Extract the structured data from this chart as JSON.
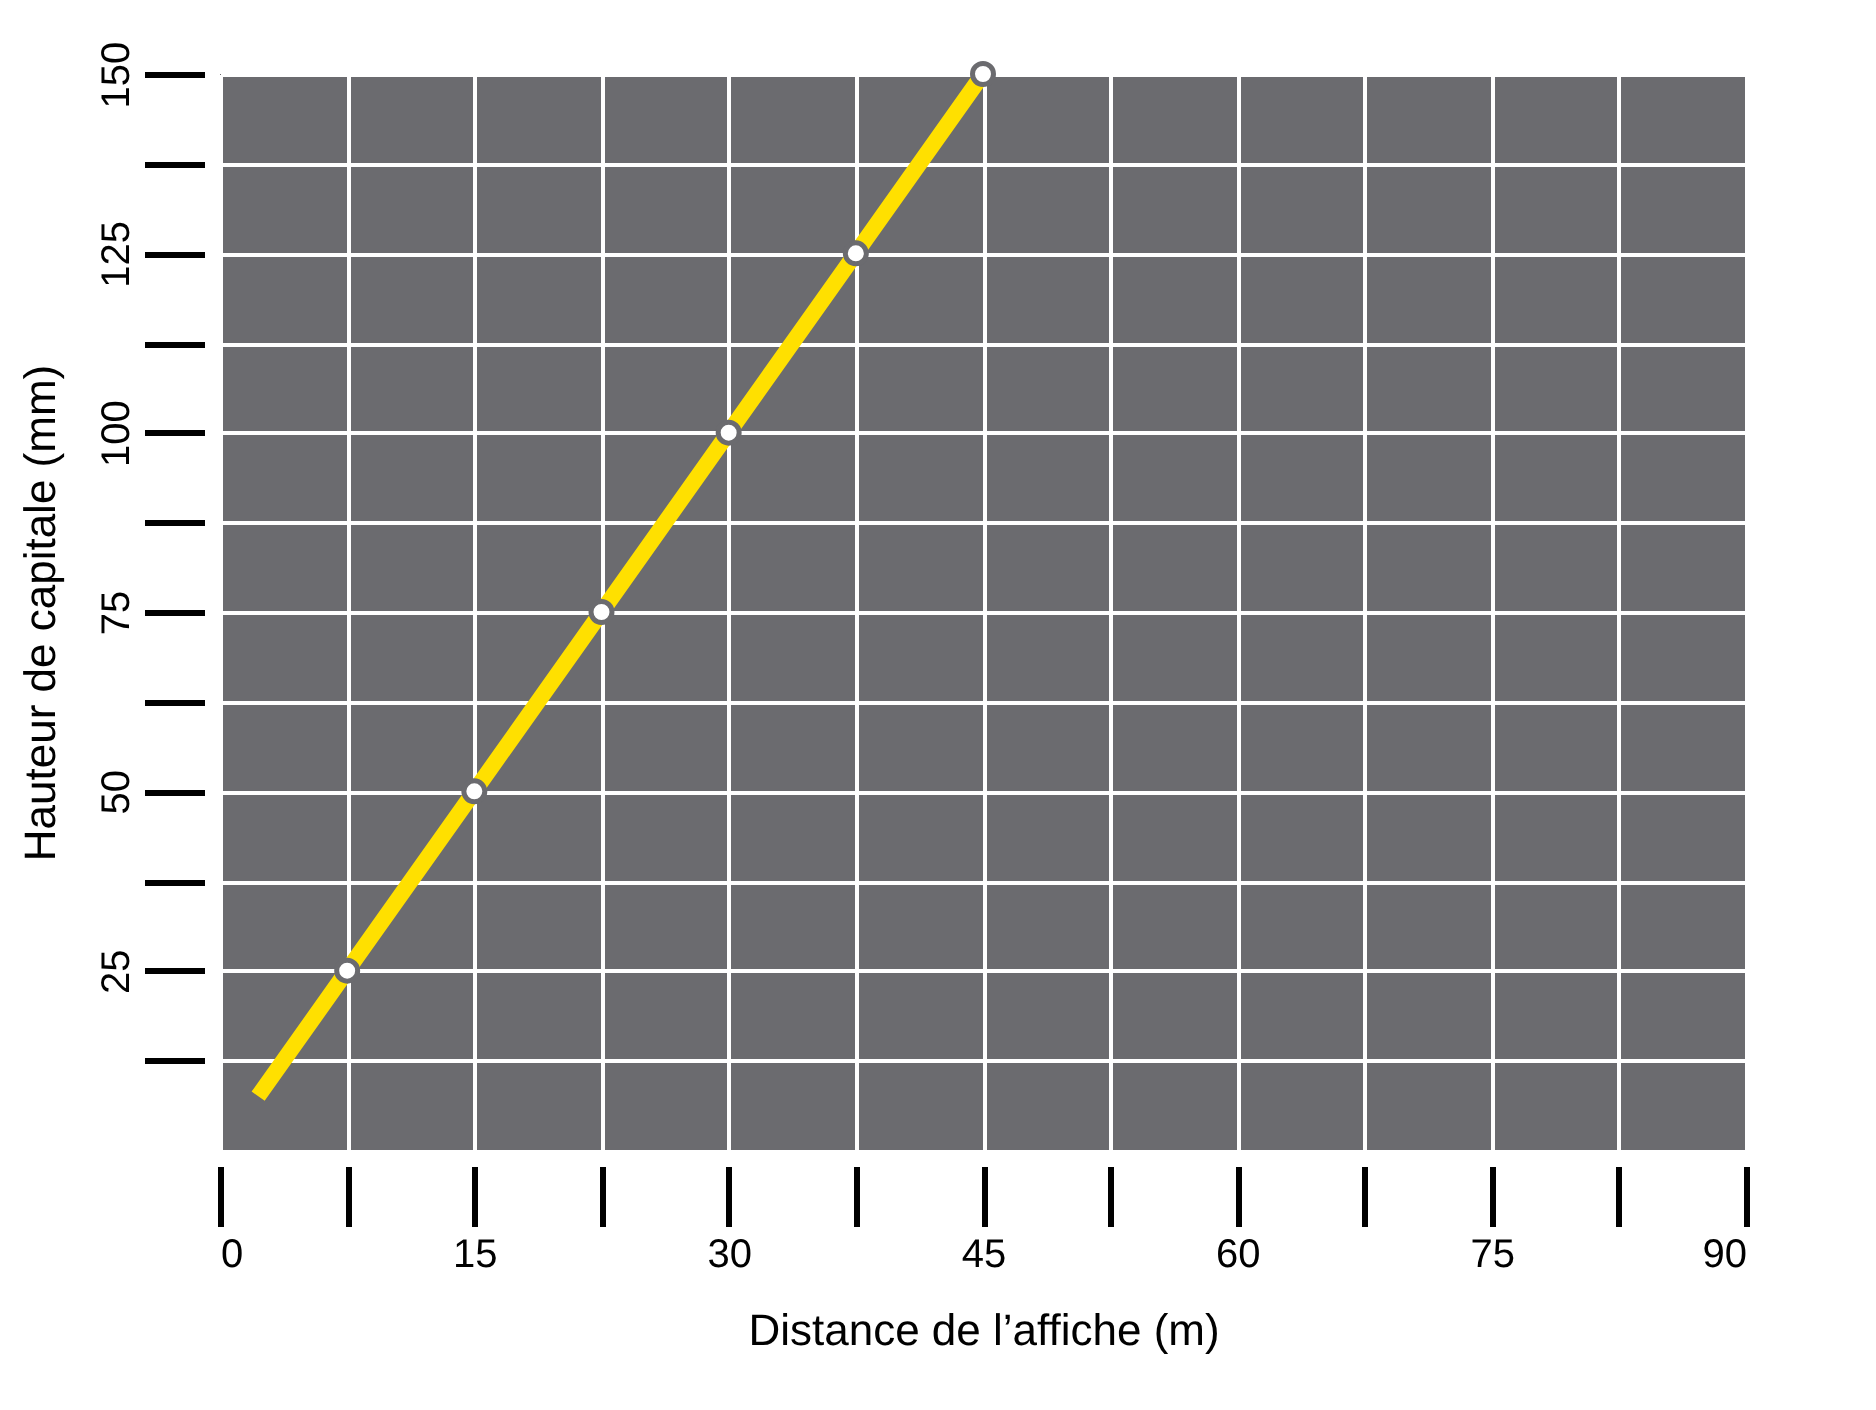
{
  "chart_data": {
    "type": "line",
    "xlabel": "Distance de l’affiche (m)",
    "ylabel": "Hauteur de capitale (mm)",
    "xlim": [
      0,
      90
    ],
    "ylim": [
      0,
      150
    ],
    "xticks": [
      0,
      {
        "value": 7.5,
        "label": null
      },
      15,
      {
        "value": 22.5,
        "label": null
      },
      30,
      {
        "value": 37.5,
        "label": null
      },
      45,
      {
        "value": 52.5,
        "label": null
      },
      60,
      {
        "value": 67.5,
        "label": null
      },
      75,
      {
        "value": 82.5,
        "label": null
      },
      90
    ],
    "yticks": [
      {
        "value": 12.5,
        "label": null
      },
      25,
      {
        "value": 37.5,
        "label": null
      },
      50,
      {
        "value": 62.5,
        "label": null
      },
      75,
      {
        "value": 87.5,
        "label": null
      },
      100,
      {
        "value": 112.5,
        "label": null
      },
      125,
      {
        "value": 137.5,
        "label": null
      },
      150
    ],
    "grid": true,
    "series": [
      {
        "color": "#ffe000",
        "marker": "none",
        "x": [
          2.25,
          7.5,
          15,
          22.5,
          30,
          37.5,
          45
        ],
        "values": [
          7.5,
          25,
          50,
          75,
          100,
          125,
          150
        ]
      },
      {
        "type": "scatter",
        "color": "#ffffff",
        "marker": "circle",
        "x": [
          7.5,
          15,
          22.5,
          30,
          37.5,
          45
        ],
        "values": [
          25,
          50,
          75,
          100,
          125,
          150
        ]
      }
    ]
  }
}
